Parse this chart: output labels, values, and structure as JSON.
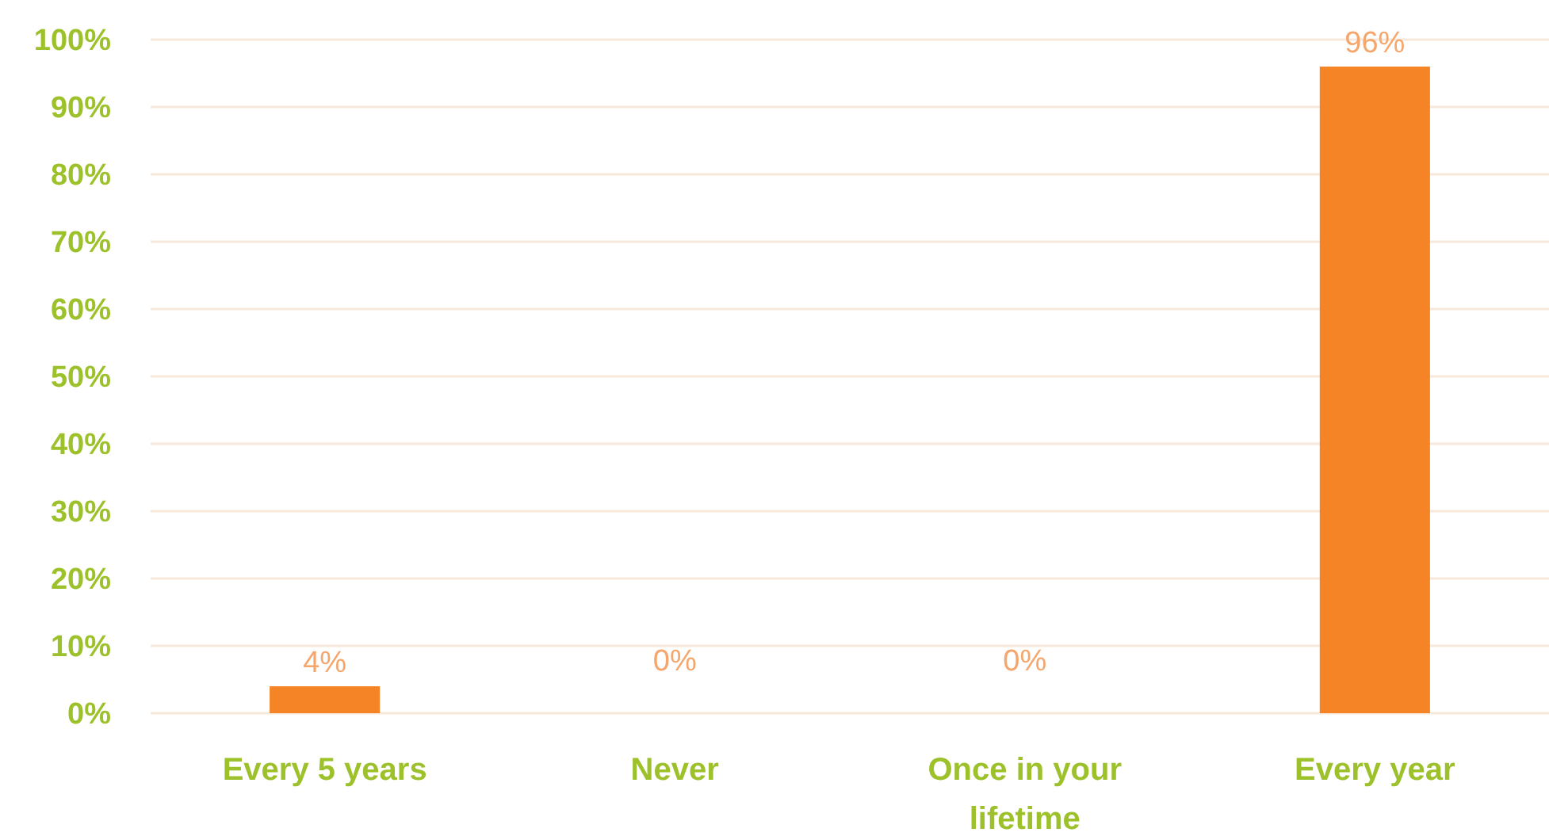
{
  "chart_data": {
    "type": "bar",
    "categories": [
      "Every 5 years",
      "Never",
      "Once in your lifetime",
      "Every year"
    ],
    "values": [
      4,
      0,
      0,
      96
    ],
    "color": "#f58426",
    "value_labels": [
      "4%",
      "0%",
      "0%",
      "96%"
    ],
    "ylim": [
      0,
      100
    ],
    "yticks": [
      {
        "value": 0,
        "label": "0%"
      },
      {
        "value": 10,
        "label": "10%"
      },
      {
        "value": 20,
        "label": "20%"
      },
      {
        "value": 30,
        "label": "30%"
      },
      {
        "value": 40,
        "label": "40%"
      },
      {
        "value": 50,
        "label": "50%"
      },
      {
        "value": 60,
        "label": "60%"
      },
      {
        "value": 70,
        "label": "70%"
      },
      {
        "value": 80,
        "label": "80%"
      },
      {
        "value": 90,
        "label": "90%"
      },
      {
        "value": 100,
        "label": "100%"
      }
    ],
    "grid": "y"
  }
}
